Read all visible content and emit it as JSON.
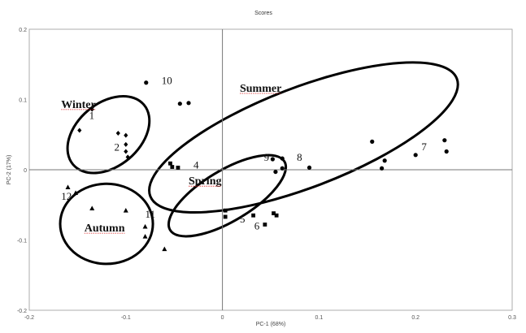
{
  "chart_data": {
    "type": "scatter",
    "title": "Scores",
    "xlabel": "PC-1 (68%)",
    "ylabel": "PC-2 (17%)",
    "xlim": [
      -0.2,
      0.3
    ],
    "ylim": [
      -0.2,
      0.2
    ],
    "xticks": [
      "-0.2",
      "-0.1",
      "0",
      "0.1",
      "0.2",
      "0.3"
    ],
    "yticks": [
      "0.2",
      "0.1",
      "0",
      "-0.1",
      "-0.2"
    ],
    "grid": false,
    "series": [
      {
        "name": "Winter",
        "marker": "diamond",
        "points": [
          [
            -0.135,
            0.086
          ],
          [
            -0.148,
            0.056
          ],
          [
            -0.108,
            0.052
          ],
          [
            -0.1,
            0.049
          ],
          [
            -0.1,
            0.036
          ],
          [
            -0.1,
            0.026
          ],
          [
            -0.098,
            0.018
          ]
        ]
      },
      {
        "name": "Summer",
        "marker": "circle",
        "points": [
          [
            -0.079,
            0.124
          ],
          [
            -0.044,
            0.094
          ],
          [
            -0.035,
            0.095
          ],
          [
            0.052,
            0.015
          ],
          [
            0.062,
            0.016
          ],
          [
            0.055,
            -0.003
          ],
          [
            0.062,
            0.002
          ],
          [
            0.09,
            0.003
          ],
          [
            0.155,
            0.04
          ],
          [
            0.168,
            0.013
          ],
          [
            0.165,
            0.002
          ],
          [
            0.2,
            0.021
          ],
          [
            0.23,
            0.042
          ],
          [
            0.232,
            0.026
          ]
        ]
      },
      {
        "name": "Spring",
        "marker": "square",
        "points": [
          [
            -0.054,
            0.009
          ],
          [
            -0.052,
            0.004
          ],
          [
            -0.046,
            0.003
          ],
          [
            0.003,
            -0.058
          ],
          [
            0.003,
            -0.067
          ],
          [
            0.032,
            -0.065
          ],
          [
            0.044,
            -0.078
          ],
          [
            0.053,
            -0.062
          ],
          [
            0.056,
            -0.065
          ]
        ]
      },
      {
        "name": "Autumn",
        "marker": "triangle",
        "points": [
          [
            -0.16,
            -0.025
          ],
          [
            -0.152,
            -0.033
          ],
          [
            -0.135,
            -0.055
          ],
          [
            -0.1,
            -0.058
          ],
          [
            -0.08,
            -0.081
          ],
          [
            -0.08,
            -0.095
          ],
          [
            -0.06,
            -0.113
          ]
        ]
      }
    ],
    "point_labels": [
      {
        "text": "1",
        "x": -0.138,
        "y": 0.072
      },
      {
        "text": "2",
        "x": -0.112,
        "y": 0.027
      },
      {
        "text": "10",
        "x": -0.063,
        "y": 0.122
      },
      {
        "text": "4",
        "x": -0.03,
        "y": 0.002
      },
      {
        "text": "5",
        "x": 0.018,
        "y": -0.075
      },
      {
        "text": "6",
        "x": 0.033,
        "y": -0.085
      },
      {
        "text": "9",
        "x": 0.043,
        "y": 0.013
      },
      {
        "text": "8",
        "x": 0.077,
        "y": 0.013
      },
      {
        "text": "7",
        "x": 0.206,
        "y": 0.028
      },
      {
        "text": "11",
        "x": -0.08,
        "y": -0.068
      },
      {
        "text": "12",
        "x": -0.167,
        "y": -0.043
      }
    ],
    "group_labels": [
      {
        "text": "Winter",
        "x": -0.167,
        "y": 0.088
      },
      {
        "text": "Summer",
        "x": 0.018,
        "y": 0.111
      },
      {
        "text": "Spring",
        "x": -0.035,
        "y": -0.021
      },
      {
        "text": "Autumn",
        "x": -0.143,
        "y": -0.88
      }
    ],
    "ellipses": [
      {
        "name": "Winter",
        "cx": -0.118,
        "cy": 0.05,
        "rx": 0.048,
        "ry": 0.045,
        "rotate": 40
      },
      {
        "name": "Summer",
        "cx": 0.084,
        "cy": 0.046,
        "rx": 0.17,
        "ry": 0.071,
        "rotate": 21
      },
      {
        "name": "Spring",
        "cx": 0.005,
        "cy": -0.037,
        "rx": 0.069,
        "ry": 0.036,
        "rotate": 31
      },
      {
        "name": "Autumn",
        "cx": -0.12,
        "cy": -0.077,
        "rx": 0.048,
        "ry": 0.057,
        "rotate": 0
      }
    ]
  }
}
